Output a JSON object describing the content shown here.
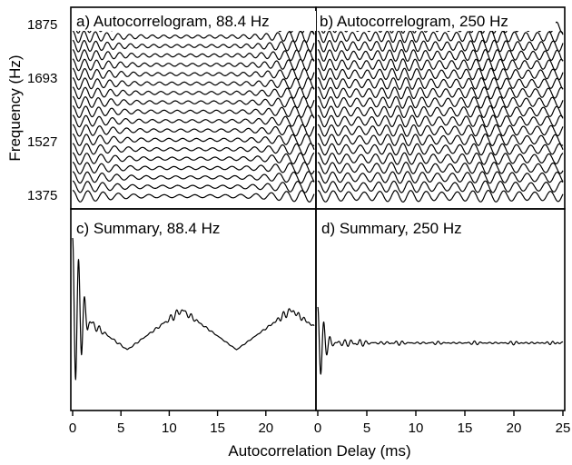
{
  "figure": {
    "xlabel": "Autocorrelation Delay (ms)",
    "ylabel": "Frequency (Hz)"
  },
  "chart_data": [
    {
      "type": "line",
      "panel": "a",
      "title": "a) Autocorrelogram, 88.4 Hz",
      "f0_hz": 88.4,
      "xlim": [
        0,
        11.5
      ],
      "channels_hz": [
        1375,
        1400,
        1425,
        1450,
        1476,
        1501,
        1527,
        1554,
        1580,
        1607,
        1636,
        1664,
        1693,
        1722,
        1751,
        1781,
        1812,
        1843,
        1875
      ],
      "ytick_labels": [
        "1875",
        "1693",
        "1527",
        "1375"
      ],
      "ytick_values": [
        1875,
        1693,
        1527,
        1375
      ]
    },
    {
      "type": "line",
      "panel": "b",
      "title": "b) Autocorrelogram, 250 Hz",
      "f0_hz": 250,
      "xlim": [
        0,
        11.5
      ],
      "channels_hz": [
        1375,
        1400,
        1425,
        1450,
        1476,
        1501,
        1527,
        1554,
        1580,
        1607,
        1636,
        1664,
        1693,
        1722,
        1751,
        1781,
        1812,
        1843,
        1875
      ]
    },
    {
      "type": "line",
      "panel": "c",
      "title": "c) Summary, 88.4 Hz",
      "f0_hz": 88.4,
      "xlim": [
        0,
        25
      ],
      "xticks": [
        0,
        5,
        10,
        15,
        20
      ],
      "peak_delays_ms": [
        0,
        11.3,
        22.6
      ]
    },
    {
      "type": "line",
      "panel": "d",
      "title": "d) Summary, 250 Hz",
      "f0_hz": 250,
      "xlim": [
        0,
        25
      ],
      "xticks": [
        0,
        5,
        10,
        15,
        20,
        25
      ],
      "peak_delays_ms": [
        0,
        4,
        8,
        12,
        16,
        20,
        24
      ]
    }
  ]
}
